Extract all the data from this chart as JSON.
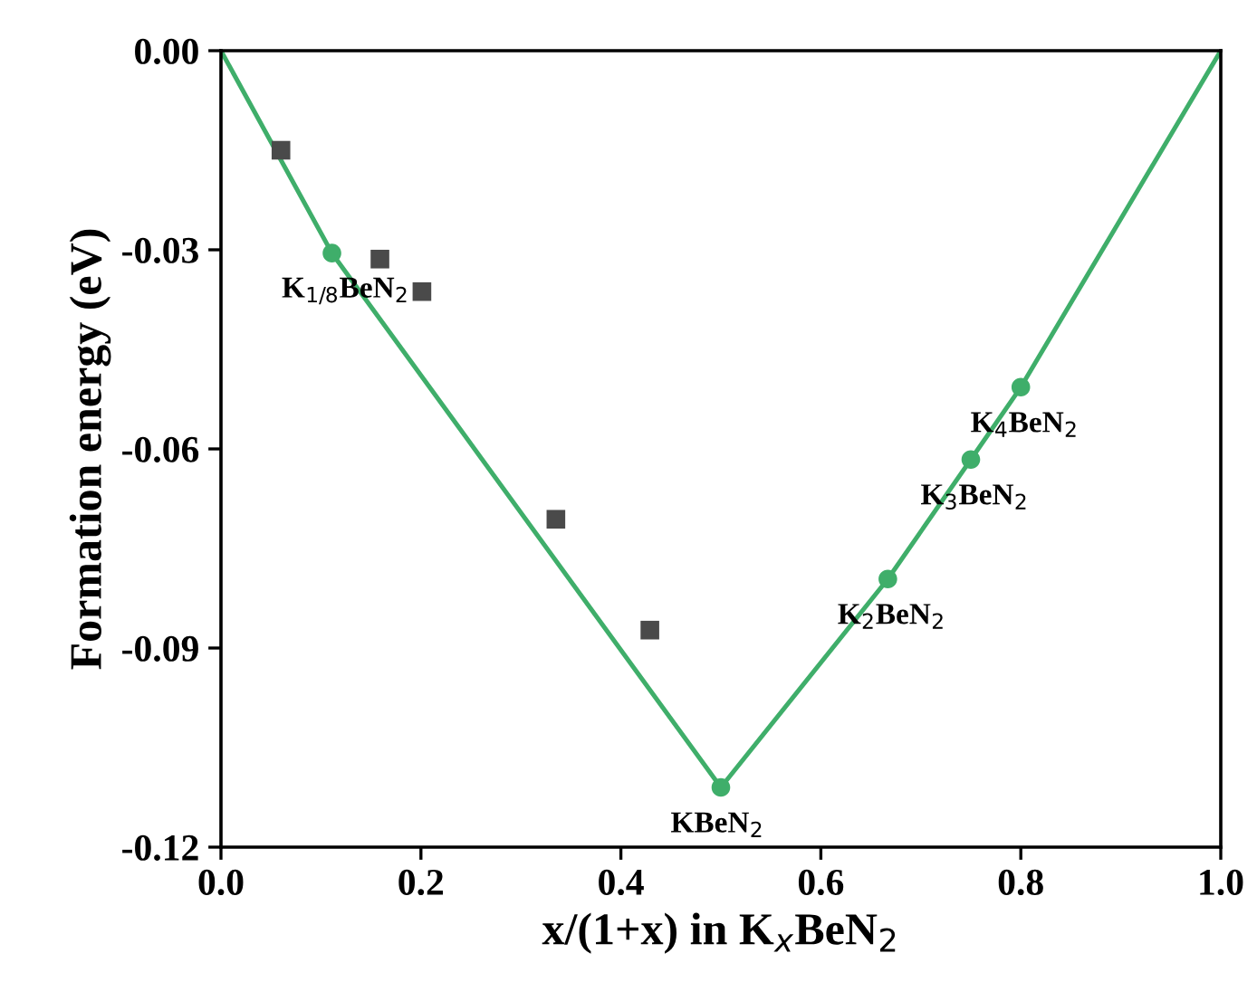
{
  "chart_data": {
    "type": "scatter",
    "xlabel": "x/(1+x) in K$_{x}$BeN$_{2}$",
    "ylabel": "Formation energy (eV)",
    "xlim": [
      0,
      1
    ],
    "ylim": [
      -0.12,
      0
    ],
    "xticks": [
      {
        "value": 0,
        "label": "0.0"
      },
      {
        "value": 0.2,
        "label": "0.2"
      },
      {
        "value": 0.4,
        "label": "0.4"
      },
      {
        "value": 0.6,
        "label": "0.6"
      },
      {
        "value": 0.8,
        "label": "0.8"
      },
      {
        "value": 1,
        "label": "1.0"
      }
    ],
    "yticks": [
      {
        "value": -0.12,
        "label": "-0.12"
      },
      {
        "value": -0.09,
        "label": "-0.09"
      },
      {
        "value": -0.06,
        "label": "-0.06"
      },
      {
        "value": -0.03,
        "label": "-0.03"
      },
      {
        "value": 0,
        "label": "0.00"
      }
    ],
    "grid": false,
    "series": [
      {
        "type": "line",
        "color": "#3fae6a",
        "marker": "none",
        "x": [
          0,
          0.111,
          0.5,
          0.667,
          0.75,
          0.8,
          1
        ],
        "values": [
          0,
          -0.0305,
          -0.111,
          -0.0796,
          -0.0616,
          -0.0507,
          0
        ]
      },
      {
        "type": "scatter",
        "color": "#3fae6a",
        "marker": "circle",
        "x": [
          0.111,
          0.5,
          0.667,
          0.75,
          0.8
        ],
        "values": [
          -0.0305,
          -0.111,
          -0.0796,
          -0.0616,
          -0.0507
        ]
      },
      {
        "color": "#4a4a4a",
        "marker": "square",
        "x": [
          0.06,
          0.159,
          0.201,
          0.335,
          0.429
        ],
        "values": [
          -0.015,
          -0.0314,
          -0.0363,
          -0.0706,
          -0.0873
        ]
      }
    ],
    "annotations": [
      {
        "text": "K$_{1/8}$BeN$_{2}$",
        "x": 0.111,
        "y": -0.0305
      },
      {
        "text": "KBeN$_{2}$",
        "x": 0.5,
        "y": -0.111
      },
      {
        "text": "K$_{2}$BeN$_{2}$",
        "x": 0.667,
        "y": -0.0796
      },
      {
        "text": "K$_{3}$BeN$_{2}$",
        "x": 0.75,
        "y": -0.0616
      },
      {
        "text": "K$_{4}$BeN$_{2}$",
        "x": 0.8,
        "y": -0.0507
      }
    ]
  }
}
